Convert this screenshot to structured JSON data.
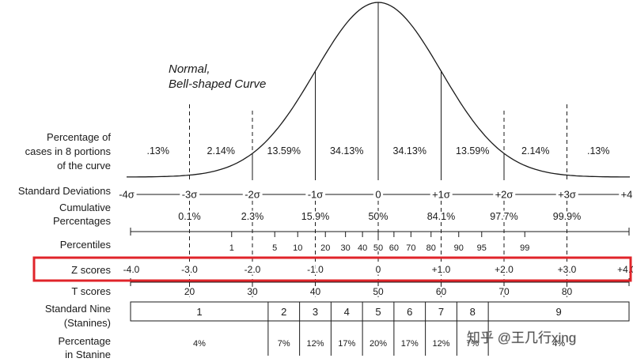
{
  "title": [
    "Normal,",
    "Bell-shaped Curve"
  ],
  "row_labels": {
    "portions": [
      "Percentage of",
      "cases in 8 portions",
      "of the curve"
    ],
    "sd": "Standard Deviations",
    "cumulative": [
      "Cumulative",
      "Percentages"
    ],
    "percentiles": "Percentiles",
    "z": "Z scores",
    "t": "T scores",
    "stanine": [
      "Standard Nine",
      "(Stanines)"
    ],
    "stanine_pct": [
      "Percentage",
      "in Stanine"
    ]
  },
  "portion_values": [
    ".13%",
    "2.14%",
    "13.59%",
    "34.13%",
    "34.13%",
    "13.59%",
    "2.14%",
    ".13%"
  ],
  "sd_labels": [
    "-4σ",
    "-3σ",
    "-2σ",
    "-1σ",
    "0",
    "+1σ",
    "+2σ",
    "+3σ",
    "+4σ"
  ],
  "cumulative_values": [
    "0.1%",
    "2.3%",
    "15.9%",
    "50%",
    "84.1%",
    "97.7%",
    "99.9%"
  ],
  "percentiles": [
    {
      "label": "1",
      "z": -2.33
    },
    {
      "label": "5",
      "z": -1.645
    },
    {
      "label": "10",
      "z": -1.28
    },
    {
      "label": "20",
      "z": -0.84
    },
    {
      "label": "30",
      "z": -0.52
    },
    {
      "label": "40",
      "z": -0.25
    },
    {
      "label": "50",
      "z": 0
    },
    {
      "label": "60",
      "z": 0.25
    },
    {
      "label": "70",
      "z": 0.52
    },
    {
      "label": "80",
      "z": 0.84
    },
    {
      "label": "90",
      "z": 1.28
    },
    {
      "label": "95",
      "z": 1.645
    },
    {
      "label": "99",
      "z": 2.33
    }
  ],
  "z_scores": [
    "-4.0",
    "-3.0",
    "-2.0",
    "-1.0",
    "0",
    "+1.0",
    "+2.0",
    "+3.0",
    "+4.0"
  ],
  "t_scores": [
    "20",
    "30",
    "40",
    "50",
    "60",
    "70",
    "80"
  ],
  "stanines": [
    {
      "label": "1",
      "pct": "4%",
      "z_from": -4,
      "z_to": -1.75
    },
    {
      "label": "2",
      "pct": "7%",
      "z_from": -1.75,
      "z_to": -1.25
    },
    {
      "label": "3",
      "pct": "12%",
      "z_from": -1.25,
      "z_to": -0.75
    },
    {
      "label": "4",
      "pct": "17%",
      "z_from": -0.75,
      "z_to": -0.25
    },
    {
      "label": "5",
      "pct": "20%",
      "z_from": -0.25,
      "z_to": 0.25
    },
    {
      "label": "6",
      "pct": "17%",
      "z_from": 0.25,
      "z_to": 0.75
    },
    {
      "label": "7",
      "pct": "12%",
      "z_from": 0.75,
      "z_to": 1.25
    },
    {
      "label": "8",
      "pct": "7%",
      "z_from": 1.25,
      "z_to": 1.75
    },
    {
      "label": "9",
      "pct": "4%",
      "z_from": 1.75,
      "z_to": 4
    }
  ],
  "watermark": "知乎 @王几行xing",
  "colors": {
    "highlight": "#e0242a",
    "ink": "#1a1a1a"
  }
}
